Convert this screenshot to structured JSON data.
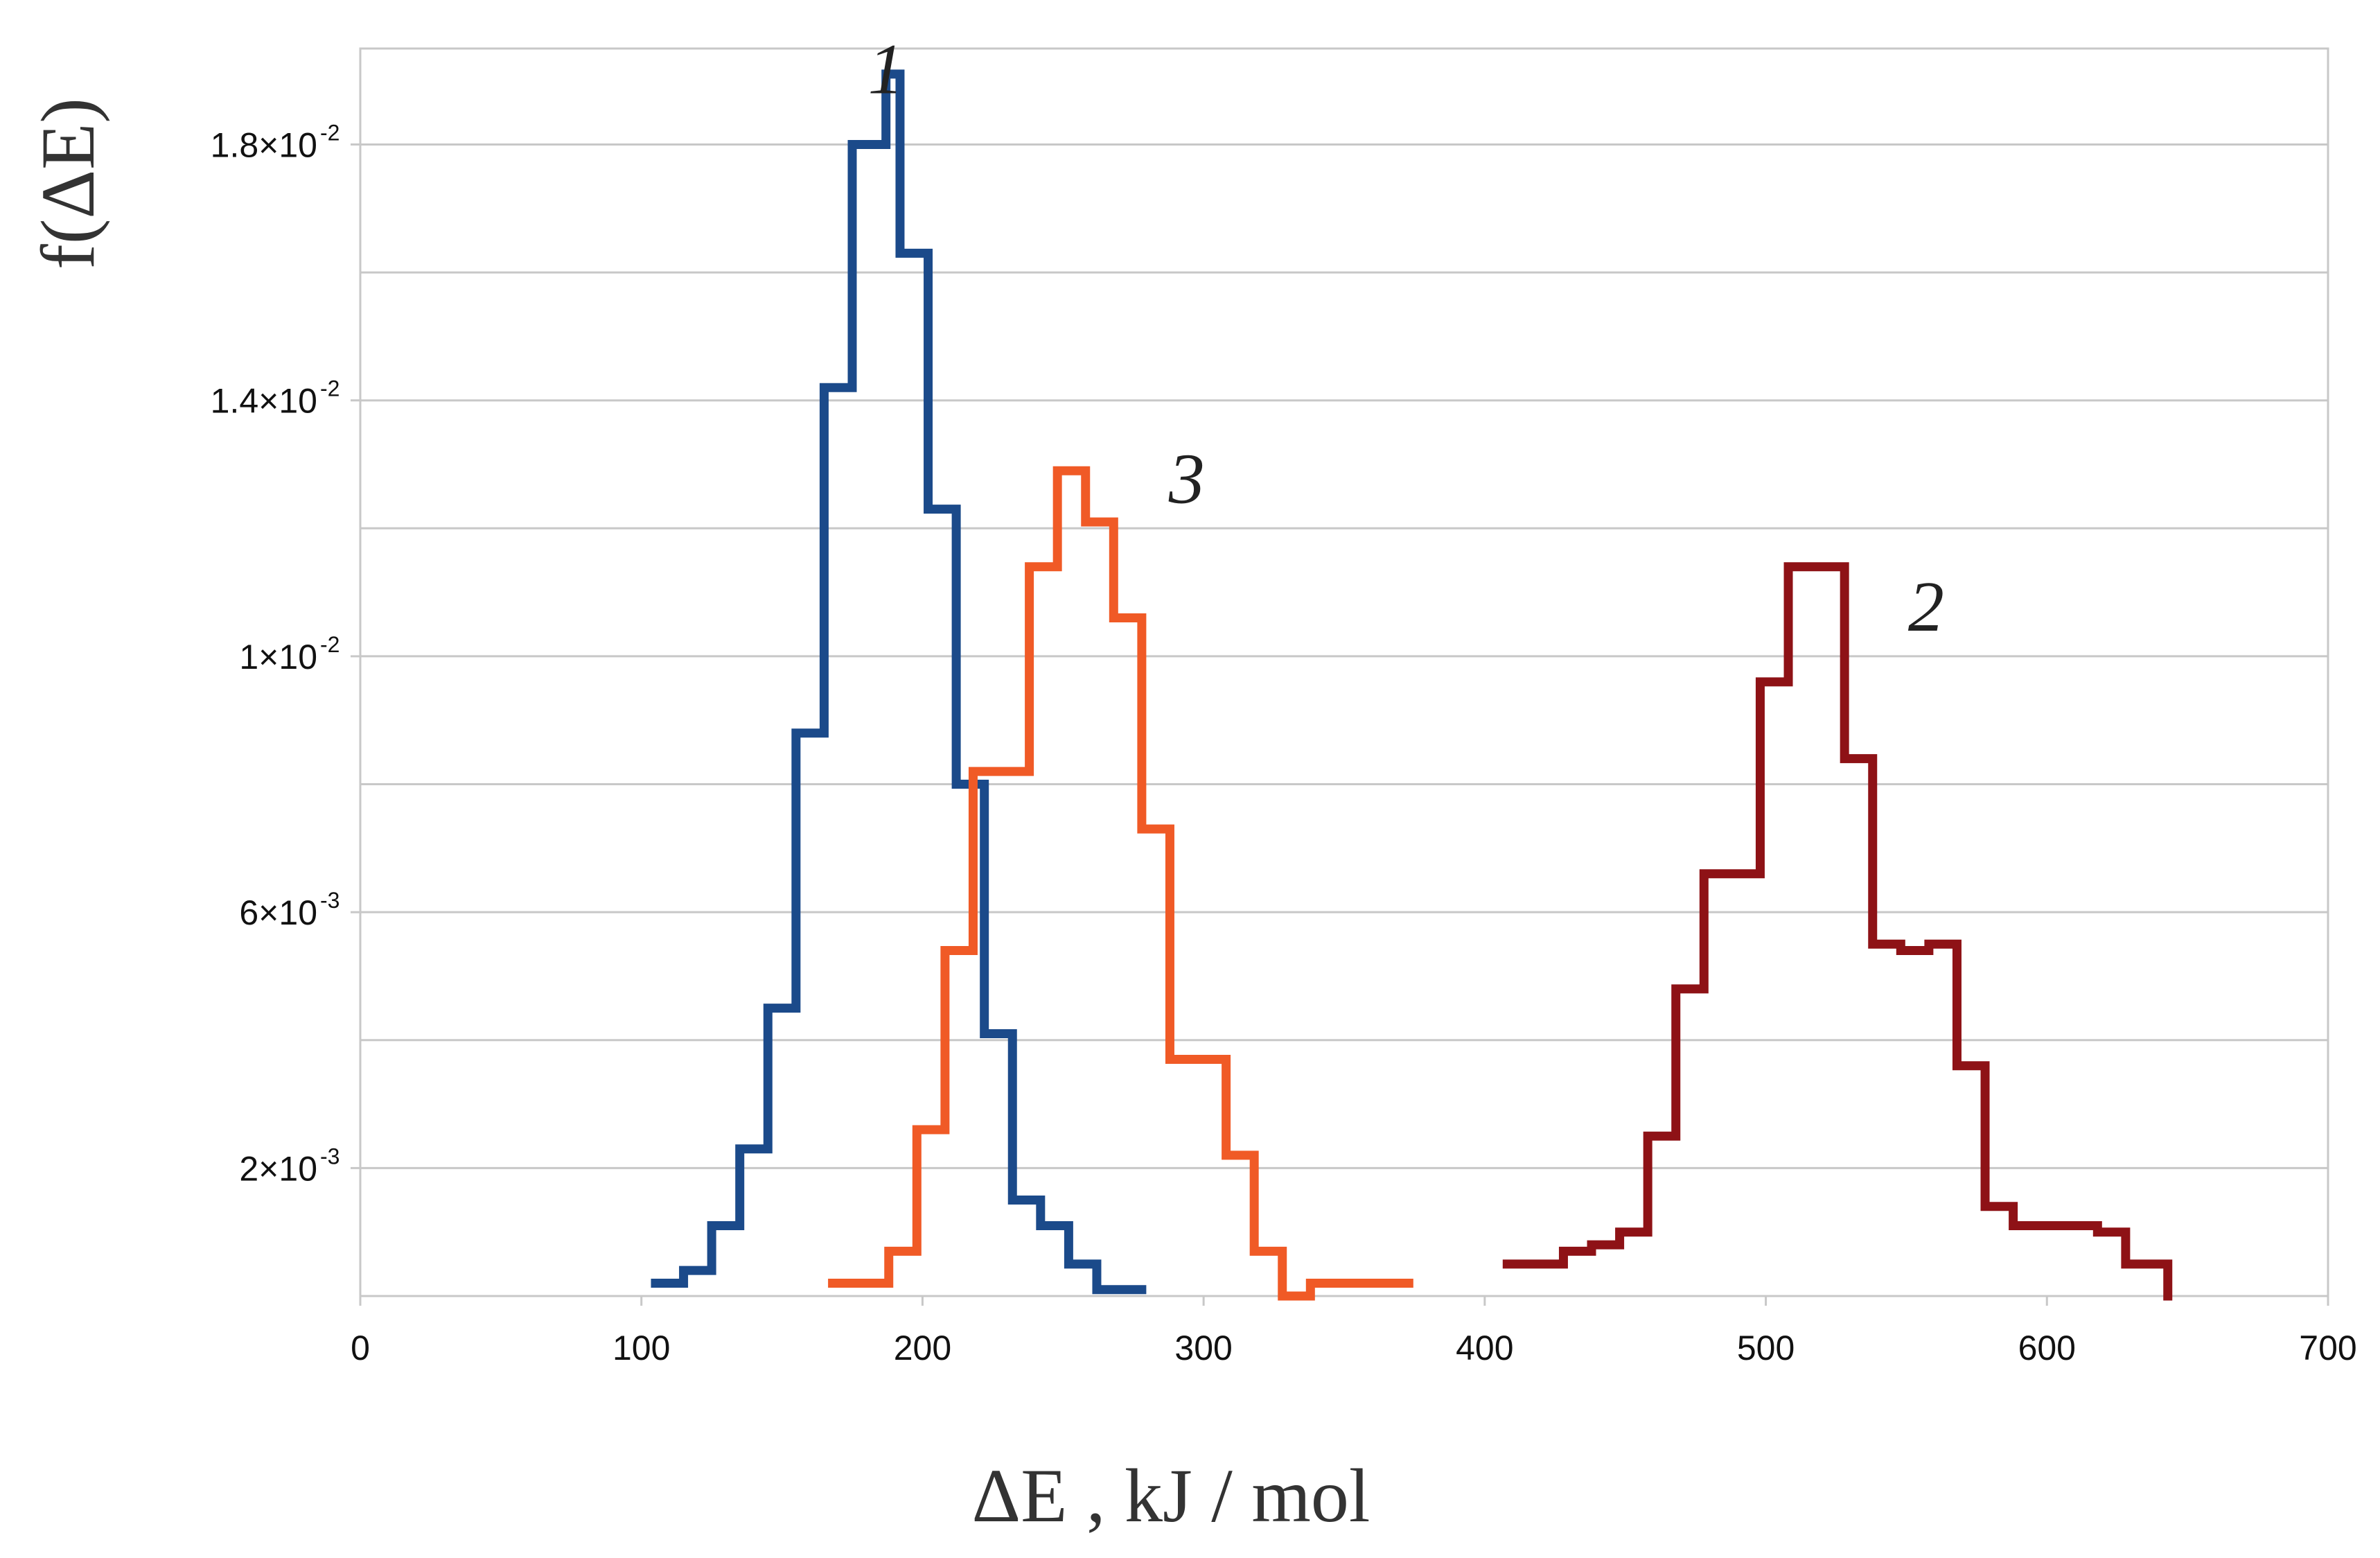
{
  "chart_data": {
    "type": "line",
    "step": true,
    "xlabel": "ΔE , kJ / mol",
    "ylabel": "f(ΔE)",
    "xlim": [
      0,
      700
    ],
    "ylim": [
      0,
      0.0195
    ],
    "x_ticks": [
      {
        "value": 0,
        "label": "0"
      },
      {
        "value": 100,
        "label": "100"
      },
      {
        "value": 200,
        "label": "200"
      },
      {
        "value": 300,
        "label": "300"
      },
      {
        "value": 400,
        "label": "400"
      },
      {
        "value": 500,
        "label": "500"
      },
      {
        "value": 600,
        "label": "600"
      },
      {
        "value": 700,
        "label": "700"
      }
    ],
    "y_ticks": [
      {
        "value": 0.002,
        "mantissa": "2×10",
        "exponent": "-3"
      },
      {
        "value": 0.006,
        "mantissa": "6×10",
        "exponent": "-3"
      },
      {
        "value": 0.01,
        "mantissa": "1×10",
        "exponent": "-2"
      },
      {
        "value": 0.014,
        "mantissa": "1.4×10",
        "exponent": "-2"
      },
      {
        "value": 0.018,
        "mantissa": "1.8×10",
        "exponent": "-2"
      }
    ],
    "y_gridlines": [
      0.002,
      0.004,
      0.006,
      0.008,
      0.01,
      0.012,
      0.014,
      0.016,
      0.018
    ],
    "grid": true,
    "series": [
      {
        "label": "1",
        "label_at": [
          187,
          0.0188
        ],
        "color": "#1b4a8a",
        "points": [
          [
            105,
            0.0002
          ],
          [
            115,
            0.0004
          ],
          [
            125,
            0.0011
          ],
          [
            135,
            0.0023
          ],
          [
            145,
            0.0045
          ],
          [
            155,
            0.0088
          ],
          [
            165,
            0.0142
          ],
          [
            175,
            0.018
          ],
          [
            187,
            0.0191
          ],
          [
            192,
            0.0163
          ],
          [
            202,
            0.0123
          ],
          [
            212,
            0.008
          ],
          [
            222,
            0.0041
          ],
          [
            232,
            0.0015
          ],
          [
            242,
            0.0011
          ],
          [
            252,
            0.0005
          ],
          [
            262,
            0.0001
          ],
          [
            278,
            0.0001
          ]
        ]
      },
      {
        "label": "3",
        "label_at": [
          294,
          0.0124
        ],
        "color": "#f05a26",
        "points": [
          [
            168,
            0.0002
          ],
          [
            178,
            0.0002
          ],
          [
            188,
            0.0007
          ],
          [
            198,
            0.0026
          ],
          [
            208,
            0.0054
          ],
          [
            218,
            0.0082
          ],
          [
            228,
            0.0082
          ],
          [
            238,
            0.0114
          ],
          [
            248,
            0.0129
          ],
          [
            258,
            0.0121
          ],
          [
            268,
            0.0106
          ],
          [
            278,
            0.0073
          ],
          [
            288,
            0.0037
          ],
          [
            298,
            0.0037
          ],
          [
            308,
            0.0022
          ],
          [
            318,
            0.0007
          ],
          [
            328,
            0.0
          ],
          [
            338,
            0.0002
          ],
          [
            348,
            0.0002
          ],
          [
            373,
            0.0002
          ]
        ]
      },
      {
        "label": "2",
        "label_at": [
          557,
          0.0104
        ],
        "color": "#8e1216",
        "points": [
          [
            408,
            0.0005
          ],
          [
            418,
            0.0005
          ],
          [
            428,
            0.0007
          ],
          [
            438,
            0.0008
          ],
          [
            448,
            0.001
          ],
          [
            458,
            0.0025
          ],
          [
            468,
            0.0048
          ],
          [
            478,
            0.0066
          ],
          [
            488,
            0.0066
          ],
          [
            498,
            0.0096
          ],
          [
            508,
            0.0114
          ],
          [
            518,
            0.0114
          ],
          [
            528,
            0.0084
          ],
          [
            538,
            0.0055
          ],
          [
            548,
            0.0054
          ],
          [
            558,
            0.0055
          ],
          [
            568,
            0.0036
          ],
          [
            578,
            0.0014
          ],
          [
            588,
            0.0011
          ],
          [
            598,
            0.0011
          ],
          [
            608,
            0.0011
          ],
          [
            618,
            0.001
          ],
          [
            628,
            0.0005
          ],
          [
            643,
            0.0005
          ],
          [
            643,
            0.0
          ]
        ]
      }
    ]
  }
}
